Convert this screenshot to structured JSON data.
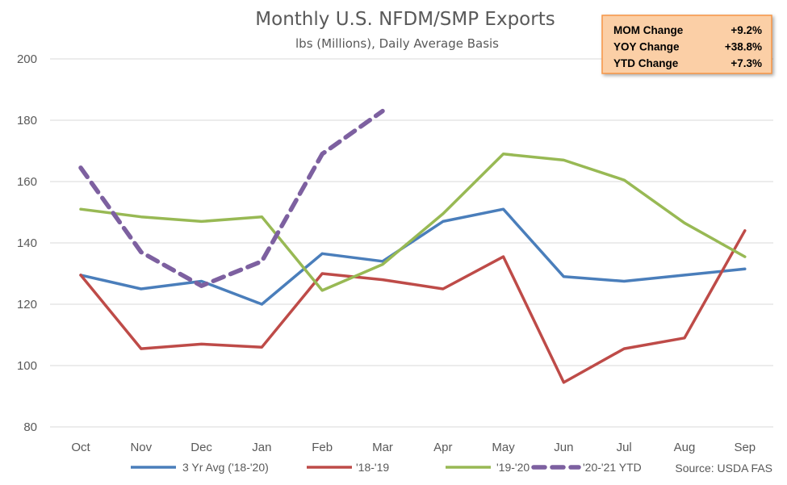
{
  "chart_data": {
    "type": "line",
    "title": "Monthly U.S. NFDM/SMP Exports",
    "subtitle": "lbs (Millions), Daily Average Basis",
    "categories": [
      "Oct",
      "Nov",
      "Dec",
      "Jan",
      "Feb",
      "Mar",
      "Apr",
      "May",
      "Jun",
      "Jul",
      "Aug",
      "Sep"
    ],
    "ylim": [
      80,
      200
    ],
    "yticks": [
      80,
      100,
      120,
      140,
      160,
      180,
      200
    ],
    "grid": true,
    "legend_position": "bottom",
    "series": [
      {
        "name": "3 Yr Avg ('18-'20)",
        "color": "#4a7ebb",
        "dash": false,
        "values": [
          129.5,
          125,
          127.5,
          120,
          136.5,
          134,
          147,
          151,
          129,
          127.5,
          129.5,
          131.5
        ]
      },
      {
        "name": "'18-'19",
        "color": "#be4b48",
        "dash": false,
        "values": [
          129.5,
          105.5,
          107,
          106,
          130,
          128,
          125,
          135.5,
          94.5,
          105.5,
          109,
          144
        ]
      },
      {
        "name": "'19-'20",
        "color": "#98b954",
        "dash": false,
        "values": [
          151,
          148.5,
          147,
          148.5,
          124.5,
          133,
          149.5,
          169,
          167,
          160.5,
          146.5,
          135.5
        ]
      },
      {
        "name": "'20-'21 YTD",
        "color": "#7d60a0",
        "dash": true,
        "values": [
          164.5,
          137,
          126,
          134,
          169,
          183,
          null,
          null,
          null,
          null,
          null,
          null
        ]
      }
    ],
    "source": "Source: USDA FAS",
    "change_box": {
      "border_color": "#f79646",
      "fill_color": "#fbcfa6",
      "rows": [
        {
          "label": "MOM Change",
          "value": "+9.2%"
        },
        {
          "label": "YOY Change",
          "value": "+38.8%"
        },
        {
          "label": "YTD Change",
          "value": "+7.3%"
        }
      ]
    }
  }
}
